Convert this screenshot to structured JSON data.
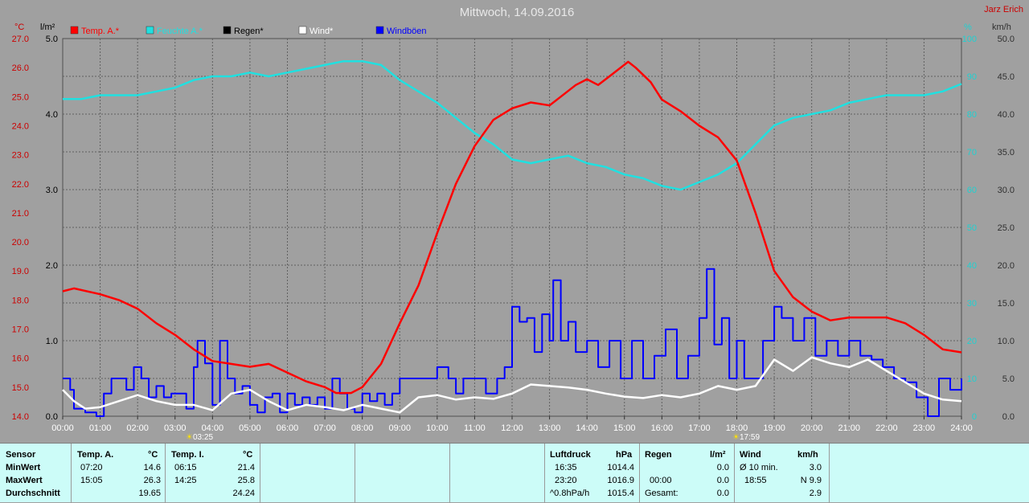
{
  "chart_data": {
    "type": "line",
    "title": "Mittwoch, 14.09.2016",
    "author": "Jarz Erich",
    "axes": {
      "temp_unit": "°C",
      "rain_unit": "l/m²",
      "hum_unit": "%",
      "wind_unit": "km/h",
      "temp_range": [
        14.0,
        27.0
      ],
      "rain_range": [
        0.0,
        5.0
      ],
      "hum_range": [
        0,
        100
      ],
      "wind_range": [
        0.0,
        50.0
      ],
      "temp_ticks": [
        "14.0",
        "15.0",
        "16.0",
        "17.0",
        "18.0",
        "19.0",
        "20.0",
        "21.0",
        "22.0",
        "23.0",
        "24.0",
        "25.0",
        "26.0",
        "27.0"
      ],
      "rain_ticks": [
        "0.0",
        "1.0",
        "2.0",
        "3.0",
        "4.0",
        "5.0"
      ],
      "hum_ticks": [
        "0",
        "10",
        "20",
        "30",
        "40",
        "50",
        "60",
        "70",
        "80",
        "90",
        "100"
      ],
      "wind_ticks": [
        "0.0",
        "5.0",
        "10.0",
        "15.0",
        "20.0",
        "25.0",
        "30.0",
        "35.0",
        "40.0",
        "45.0",
        "50.0"
      ],
      "x_ticks": [
        "00:00",
        "01:00",
        "02:00",
        "03:00",
        "04:00",
        "05:00",
        "06:00",
        "07:00",
        "08:00",
        "09:00",
        "10:00",
        "11:00",
        "12:00",
        "13:00",
        "14:00",
        "15:00",
        "16:00",
        "17:00",
        "18:00",
        "19:00",
        "20:00",
        "21:00",
        "22:00",
        "23:00",
        "24:00"
      ],
      "grid": true
    },
    "markers": {
      "sunrise": "03:25",
      "sunset": "17:59"
    },
    "legend": [
      {
        "label": "Temp. A.*",
        "color": "#ff0000"
      },
      {
        "label": "Feuchte A.*",
        "color": "#20e0e0"
      },
      {
        "label": "Regen*",
        "color": "#000000"
      },
      {
        "label": "Wind*",
        "color": "#ffffff"
      },
      {
        "label": "Windböen",
        "color": "#0000ff"
      }
    ],
    "series": [
      {
        "name": "Temp. A.*",
        "axis": "temp",
        "color": "#ff0000",
        "x": [
          0,
          0.3,
          1,
          1.5,
          2,
          2.5,
          3,
          3.5,
          4,
          4.5,
          5,
          5.5,
          6,
          6.5,
          7,
          7.3,
          7.7,
          8,
          8.5,
          9,
          9.5,
          10,
          10.5,
          11,
          11.5,
          12,
          12.5,
          13,
          13.3,
          13.7,
          14,
          14.3,
          14.7,
          15,
          15.1,
          15.3,
          15.7,
          16,
          16.5,
          17,
          17.5,
          18,
          18.5,
          19,
          19.5,
          20,
          20.5,
          21,
          21.5,
          22,
          22.5,
          23,
          23.5,
          24
        ],
        "y": [
          18.3,
          18.4,
          18.2,
          18.0,
          17.7,
          17.2,
          16.8,
          16.3,
          15.9,
          15.8,
          15.7,
          15.8,
          15.5,
          15.2,
          15.0,
          14.8,
          14.8,
          15.0,
          15.8,
          17.2,
          18.5,
          20.3,
          22.0,
          23.3,
          24.2,
          24.6,
          24.8,
          24.7,
          25.0,
          25.4,
          25.6,
          25.4,
          25.8,
          26.1,
          26.2,
          26.0,
          25.5,
          24.9,
          24.5,
          24.0,
          23.6,
          22.8,
          21.0,
          19.0,
          18.1,
          17.6,
          17.3,
          17.4,
          17.4,
          17.4,
          17.2,
          16.8,
          16.3,
          16.2
        ]
      },
      {
        "name": "Feuchte A.*",
        "axis": "hum",
        "color": "#20e0e0",
        "x": [
          0,
          0.5,
          1,
          1.5,
          2,
          2.5,
          3,
          3.5,
          4,
          4.5,
          5,
          5.5,
          6,
          6.5,
          7,
          7.5,
          8,
          8.5,
          9,
          9.5,
          10,
          10.5,
          11,
          11.5,
          12,
          12.5,
          13,
          13.5,
          14,
          14.5,
          15,
          15.5,
          16,
          16.5,
          17,
          17.5,
          18,
          18.5,
          19,
          19.5,
          20,
          20.5,
          21,
          21.5,
          22,
          22.5,
          23,
          23.5,
          24
        ],
        "y": [
          84,
          84,
          85,
          85,
          85,
          86,
          87,
          89,
          90,
          90,
          91,
          90,
          91,
          92,
          93,
          94,
          94,
          93,
          89,
          86,
          83,
          79,
          75,
          72,
          68,
          67,
          68,
          69,
          67,
          66,
          64,
          63,
          61,
          60,
          62,
          64,
          67,
          72,
          77,
          79,
          80,
          81,
          83,
          84,
          85,
          85,
          85,
          86,
          88
        ]
      },
      {
        "name": "Wind*",
        "axis": "wind",
        "color": "#ffffff",
        "x": [
          0,
          0.3,
          0.6,
          1,
          1.5,
          2,
          2.5,
          3,
          3.5,
          4,
          4.5,
          5,
          5.5,
          6,
          6.5,
          7,
          7.5,
          8,
          8.5,
          9,
          9.5,
          10,
          10.5,
          11,
          11.5,
          12,
          12.5,
          13,
          13.5,
          14,
          14.5,
          15,
          15.5,
          16,
          16.5,
          17,
          17.5,
          18,
          18.5,
          19,
          19.5,
          20,
          20.5,
          21,
          21.5,
          22,
          22.5,
          23,
          23.5,
          24
        ],
        "y": [
          3.5,
          2.0,
          1.0,
          1.2,
          2.0,
          2.8,
          2.0,
          1.5,
          1.5,
          0.8,
          3.0,
          3.5,
          2.0,
          0.8,
          1.5,
          1.2,
          0.8,
          1.5,
          1.0,
          0.5,
          2.5,
          2.8,
          2.2,
          2.5,
          2.3,
          3.0,
          4.2,
          4.0,
          3.8,
          3.5,
          3.0,
          2.6,
          2.4,
          2.8,
          2.5,
          3.0,
          4.0,
          3.5,
          4.0,
          7.5,
          6.0,
          7.8,
          7.0,
          6.5,
          7.5,
          6.0,
          4.5,
          3.0,
          2.2,
          2.0
        ]
      },
      {
        "name": "Windböen",
        "axis": "wind",
        "color": "#0000ff",
        "x": [
          0,
          0.2,
          0.3,
          0.6,
          0.9,
          1.1,
          1.3,
          1.5,
          1.7,
          1.9,
          2.1,
          2.3,
          2.5,
          2.7,
          2.9,
          3.1,
          3.3,
          3.5,
          3.6,
          3.8,
          4.0,
          4.2,
          4.4,
          4.6,
          4.8,
          5.0,
          5.2,
          5.4,
          5.6,
          5.8,
          6.0,
          6.2,
          6.4,
          6.6,
          6.8,
          7.0,
          7.2,
          7.4,
          7.6,
          7.8,
          8.0,
          8.2,
          8.4,
          8.6,
          8.8,
          9.0,
          9.5,
          10.0,
          10.3,
          10.5,
          10.7,
          11.0,
          11.3,
          11.6,
          11.8,
          12.0,
          12.2,
          12.4,
          12.6,
          12.8,
          13.0,
          13.1,
          13.3,
          13.5,
          13.7,
          14.0,
          14.3,
          14.6,
          14.9,
          15.2,
          15.5,
          15.8,
          16.1,
          16.4,
          16.7,
          17.0,
          17.2,
          17.4,
          17.6,
          17.8,
          18.0,
          18.2,
          18.4,
          18.7,
          19.0,
          19.2,
          19.5,
          19.8,
          20.1,
          20.4,
          20.7,
          21.0,
          21.3,
          21.6,
          21.9,
          22.2,
          22.5,
          22.8,
          23.1,
          23.4,
          23.7,
          24.0
        ],
        "y": [
          5.0,
          3.5,
          1.0,
          0.5,
          0.0,
          3.0,
          5.0,
          5.0,
          3.5,
          6.5,
          5.0,
          2.5,
          4.0,
          2.5,
          3.0,
          3.0,
          1.0,
          6.5,
          10.0,
          7.0,
          1.5,
          10.0,
          5.0,
          3.0,
          4.0,
          1.5,
          0.5,
          2.5,
          3.0,
          0.5,
          3.0,
          1.5,
          2.5,
          1.5,
          2.5,
          1.0,
          5.0,
          3.0,
          1.0,
          0.5,
          3.0,
          2.0,
          3.0,
          1.5,
          3.0,
          5.0,
          5.0,
          6.5,
          5.0,
          3.0,
          5.0,
          5.0,
          3.0,
          5.0,
          6.5,
          14.5,
          12.5,
          13.0,
          8.5,
          13.5,
          10.0,
          18.0,
          10.0,
          12.5,
          8.5,
          10.0,
          6.5,
          10.0,
          5.0,
          10.0,
          5.0,
          8.0,
          11.5,
          5.0,
          8.0,
          13.0,
          19.5,
          9.5,
          13.0,
          5.0,
          10.0,
          5.0,
          5.0,
          10.0,
          14.5,
          13.0,
          10.0,
          13.0,
          8.0,
          10.0,
          8.0,
          10.0,
          8.0,
          7.5,
          6.5,
          5.0,
          4.5,
          2.5,
          0.0,
          5.0,
          3.5,
          5.0
        ]
      }
    ]
  },
  "table": {
    "sensor": {
      "header": "Sensor",
      "rows": [
        "MinWert",
        "MaxWert",
        "Durchschnitt"
      ]
    },
    "temp_a": {
      "header": "Temp. A.",
      "unit": "°C",
      "min_time": "07:20",
      "min_val": "14.6",
      "max_time": "15:05",
      "max_val": "26.3",
      "avg": "19.65"
    },
    "temp_i": {
      "header": "Temp. I.",
      "unit": "°C",
      "min_time": "06:15",
      "min_val": "21.4",
      "max_time": "14:25",
      "max_val": "25.8",
      "avg": "24.24"
    },
    "luftdruck": {
      "header": "Luftdruck",
      "unit": "hPa",
      "min_time": "16:35",
      "min_val": "1014.4",
      "max_time": "23:20",
      "max_val": "1016.9",
      "avg_label": "^0.8hPa/h",
      "avg": "1015.4"
    },
    "regen": {
      "header": "Regen",
      "unit": "l/m²",
      "row2_time": "00:00",
      "row2_val": "0.0",
      "row1_val": "0.0",
      "total_label": "Gesamt:",
      "total_val": "0.0"
    },
    "wind": {
      "header": "Wind",
      "unit": "km/h",
      "avg_label": "Ø 10 min.",
      "avg_val": "3.0",
      "max_time": "18:55",
      "max_val": "N 9.9",
      "avg2": "2.9"
    }
  }
}
